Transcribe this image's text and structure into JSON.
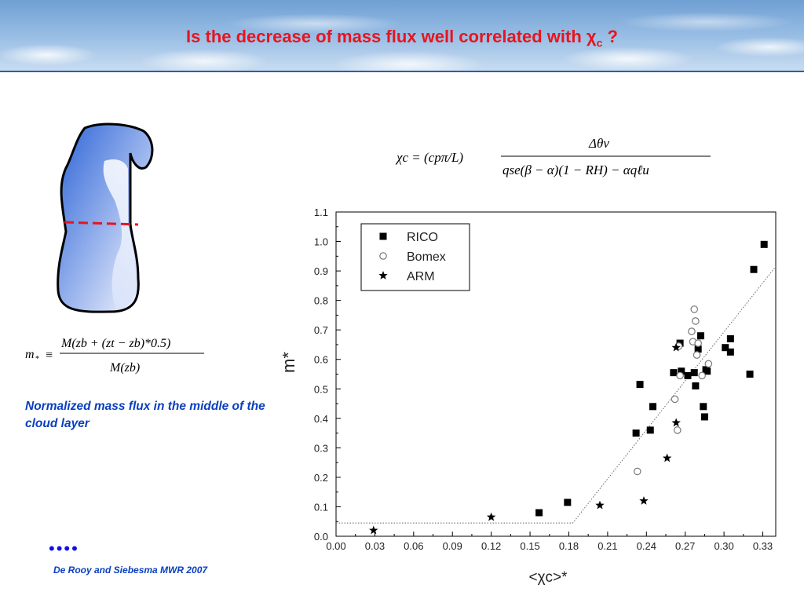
{
  "header": {
    "title_main": "Is the decrease of mass flux well correlated with χ",
    "title_sub": "c",
    "title_end": " ?"
  },
  "left_panel": {
    "mstar_lhs": "m",
    "mstar_star": "*",
    "mstar_equiv": "≡",
    "mstar_numerator": "M(zb + (zt − zb)*0.5)",
    "mstar_denominator": "M(zb)",
    "caption": "Normalized mass flux in the middle of the cloud layer",
    "dots": "••••",
    "citation": "De Rooy and Siebesma MWR 2007"
  },
  "formula": {
    "lhs": "χc = (cpπ/L)",
    "numerator": "Δθv",
    "denominator": "qse(β − α)(1 − RH) − αqℓu"
  },
  "chart_data": {
    "type": "scatter",
    "xlabel": "<χc>*",
    "ylabel": "m̂*",
    "xlim": [
      0.0,
      0.34
    ],
    "ylim": [
      0.0,
      1.1
    ],
    "x_ticks": [
      "0.00",
      "0.03",
      "0.06",
      "0.09",
      "0.12",
      "0.15",
      "0.18",
      "0.21",
      "0.24",
      "0.27",
      "0.30",
      "0.33"
    ],
    "y_ticks": [
      "0.0",
      "0.1",
      "0.2",
      "0.3",
      "0.4",
      "0.5",
      "0.6",
      "0.7",
      "0.8",
      "0.9",
      "1.0",
      "1.1"
    ],
    "legend_position": "top-left",
    "series": [
      {
        "name": "RICO",
        "marker": "square",
        "points": [
          [
            0.157,
            0.08
          ],
          [
            0.179,
            0.115
          ],
          [
            0.232,
            0.35
          ],
          [
            0.235,
            0.515
          ],
          [
            0.243,
            0.36
          ],
          [
            0.245,
            0.44
          ],
          [
            0.261,
            0.555
          ],
          [
            0.266,
            0.655
          ],
          [
            0.267,
            0.56
          ],
          [
            0.272,
            0.545
          ],
          [
            0.277,
            0.555
          ],
          [
            0.278,
            0.51
          ],
          [
            0.28,
            0.635
          ],
          [
            0.282,
            0.68
          ],
          [
            0.284,
            0.44
          ],
          [
            0.285,
            0.405
          ],
          [
            0.286,
            0.565
          ],
          [
            0.287,
            0.56
          ],
          [
            0.301,
            0.64
          ],
          [
            0.305,
            0.67
          ],
          [
            0.305,
            0.625
          ],
          [
            0.32,
            0.55
          ],
          [
            0.323,
            0.905
          ],
          [
            0.331,
            0.99
          ]
        ]
      },
      {
        "name": "Bomex",
        "marker": "circle",
        "points": [
          [
            0.233,
            0.22
          ],
          [
            0.262,
            0.465
          ],
          [
            0.264,
            0.36
          ],
          [
            0.265,
            0.645
          ],
          [
            0.266,
            0.545
          ],
          [
            0.275,
            0.695
          ],
          [
            0.276,
            0.66
          ],
          [
            0.277,
            0.77
          ],
          [
            0.278,
            0.73
          ],
          [
            0.279,
            0.615
          ],
          [
            0.28,
            0.655
          ],
          [
            0.283,
            0.545
          ],
          [
            0.288,
            0.585
          ]
        ]
      },
      {
        "name": "ARM",
        "marker": "star",
        "points": [
          [
            0.029,
            0.02
          ],
          [
            0.12,
            0.065
          ],
          [
            0.204,
            0.105
          ],
          [
            0.238,
            0.12
          ],
          [
            0.256,
            0.265
          ],
          [
            0.263,
            0.385
          ],
          [
            0.263,
            0.64
          ]
        ]
      }
    ],
    "fit_line": [
      [
        0.0,
        0.045
      ],
      [
        0.183,
        0.045
      ],
      [
        0.34,
        0.915
      ]
    ]
  }
}
